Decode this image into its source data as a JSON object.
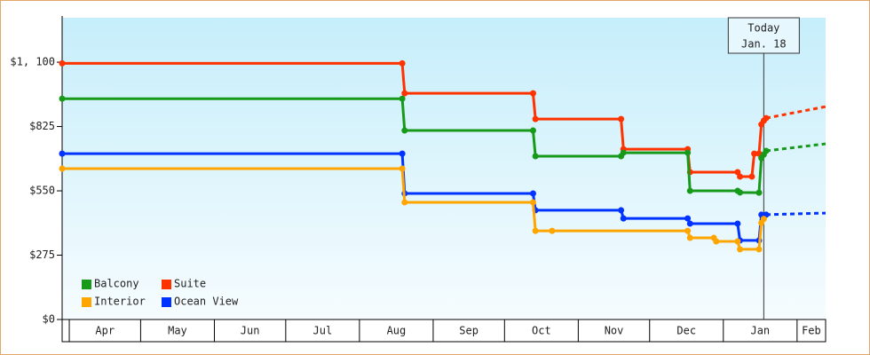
{
  "chart_data": {
    "type": "line",
    "ylim": [
      0,
      1290
    ],
    "yticks": [
      {
        "value": 0,
        "label": "$0"
      },
      {
        "value": 275,
        "label": "$275"
      },
      {
        "value": 550,
        "label": "$550"
      },
      {
        "value": 825,
        "label": "$825"
      },
      {
        "value": 1100,
        "label": "$1, 100"
      }
    ],
    "xlim": [
      -3,
      318
    ],
    "xticks": [
      {
        "value": 0,
        "label": "Apr"
      },
      {
        "value": 30,
        "label": "May"
      },
      {
        "value": 61,
        "label": "Jun"
      },
      {
        "value": 91,
        "label": "Jul"
      },
      {
        "value": 122,
        "label": "Aug"
      },
      {
        "value": 153,
        "label": "Sep"
      },
      {
        "value": 183,
        "label": "Oct"
      },
      {
        "value": 214,
        "label": "Nov"
      },
      {
        "value": 244,
        "label": "Dec"
      },
      {
        "value": 275,
        "label": "Jan"
      },
      {
        "value": 306,
        "label": "Feb"
      }
    ],
    "today": {
      "value": 292,
      "label": "Today",
      "date": "Jan. 18"
    },
    "legend": "lower left",
    "series": [
      {
        "name": "Balcony",
        "color": "#17991a",
        "x": [
          -3,
          140,
          141,
          195,
          196,
          232,
          233,
          260,
          261,
          281,
          282,
          290,
          291,
          292,
          293
        ],
        "values": [
          944,
          944,
          808,
          808,
          698,
          698,
          713,
          713,
          550,
          550,
          543,
          542,
          690,
          705,
          721
        ],
        "forecast_x": [
          293,
          318
        ],
        "forecast_values": [
          721,
          751
        ]
      },
      {
        "name": "Suite",
        "color": "#ff3300",
        "x": [
          -3,
          140,
          141,
          195,
          196,
          232,
          233,
          260,
          261,
          281,
          282,
          287,
          288,
          290,
          291,
          292,
          293
        ],
        "values": [
          1095,
          1095,
          967,
          967,
          857,
          857,
          728,
          728,
          630,
          630,
          611,
          611,
          709,
          709,
          834,
          850,
          861
        ],
        "forecast_x": [
          293,
          318
        ],
        "forecast_values": [
          861,
          910
        ]
      },
      {
        "name": "Interior",
        "color": "#ffa500",
        "x": [
          -3,
          140,
          141,
          195,
          196,
          203,
          260,
          261,
          271,
          272,
          281,
          282,
          290,
          291,
          292
        ],
        "values": [
          645,
          645,
          501,
          501,
          379,
          379,
          379,
          349,
          349,
          334,
          334,
          300,
          300,
          413,
          430
        ]
      },
      {
        "name": "Ocean View",
        "color": "#0033ff",
        "x": [
          -3,
          140,
          141,
          195,
          196,
          232,
          233,
          260,
          261,
          281,
          282,
          290,
          291,
          293
        ],
        "values": [
          709,
          709,
          539,
          539,
          467,
          467,
          432,
          432,
          410,
          410,
          338,
          338,
          448,
          448
        ],
        "forecast_x": [
          293,
          318
        ],
        "forecast_values": [
          448,
          455
        ]
      }
    ]
  }
}
